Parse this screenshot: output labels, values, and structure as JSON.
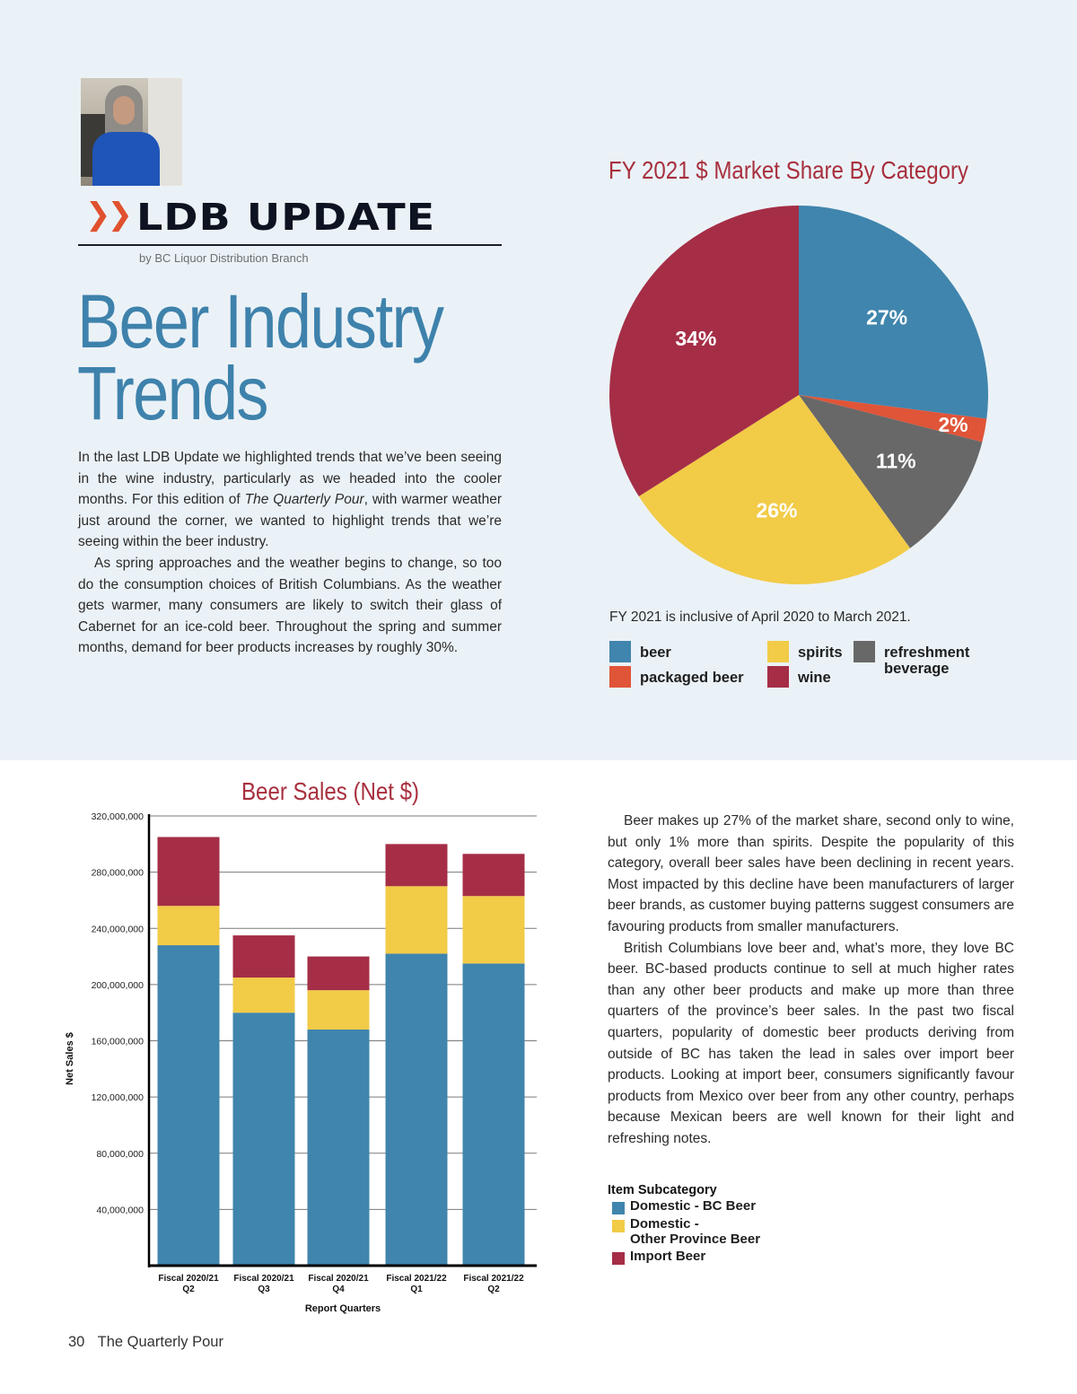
{
  "header": {
    "section_icon": "double-chevron-right",
    "section_title": "LDB UPDATE",
    "byline": "by BC Liquor Distribution Branch",
    "headline_line1": "Beer Industry",
    "headline_line2": "Trends"
  },
  "intro": {
    "p1_before": "In the last LDB Update we highlighted trends that we’ve been seeing in the wine industry, particularly as we headed into the cooler months. For this edition of ",
    "p1_italic": "The Quarterly Pour",
    "p1_after": ", with warmer weather just around the corner, we wanted to highlight trends that we’re seeing within the beer industry.",
    "p2": "As spring approaches and the weather begins to change, so too do the consumption choices of British Columbians. As the weather gets warmer, many consumers are likely to switch their glass of Cabernet for an ice-cold beer. Throughout the spring and summer months, demand for beer products increases by roughly 30%."
  },
  "body_right": {
    "p1": "Beer makes up 27% of the market share, second only to wine, but only 1% more than spirits. Despite the popularity of this category, overall beer sales have been declining in recent years. Most impacted by this decline have been manufacturers of larger beer brands, as customer buying patterns suggest consumers are favouring products from smaller manufacturers.",
    "p2": "British Columbians love beer and, what’s more, they love BC beer. BC-based products continue to sell at much higher rates than any other beer products and make up more than three quarters of the province’s beer sales. In the past two fiscal quarters, popularity of domestic beer products deriving from outside of BC has taken the lead in sales over import beer products. Looking at import beer, consumers significantly favour products from Mexico over beer from any other country, perhaps because Mexican beers are well known for their light and refreshing notes."
  },
  "pie_note": "FY 2021 is inclusive of April 2020 to March 2021.",
  "footer": {
    "page_number": "30",
    "publication": "The Quarterly Pour"
  },
  "colors": {
    "background_band": "#ebf2f7",
    "accent_orange": "#e0512e",
    "headline_blue": "#3e82ac",
    "chart_title_red": "#a8303e",
    "beer": "#4085ad",
    "packaged_beer": "#e05438",
    "spirits": "#f2cb47",
    "wine": "#a52e46",
    "refreshment_beverage": "#686868"
  },
  "chart_data": [
    {
      "type": "pie",
      "title": "FY 2021 $ Market Share By Category",
      "slices": [
        {
          "label": "beer",
          "value": 27,
          "display": "27%",
          "color": "#4085ad"
        },
        {
          "label": "packaged beer",
          "value": 2,
          "display": "2%",
          "color": "#e05438"
        },
        {
          "label": "refreshment beverage",
          "value": 11,
          "display": "11%",
          "color": "#686868"
        },
        {
          "label": "spirits",
          "value": 26,
          "display": "26%",
          "color": "#f2cb47"
        },
        {
          "label": "wine",
          "value": 34,
          "display": "34%",
          "color": "#a52e46"
        }
      ],
      "legend": [
        {
          "label": "beer",
          "color": "#4085ad"
        },
        {
          "label": "packaged beer",
          "color": "#e05438"
        },
        {
          "label": "spirits",
          "color": "#f2cb47"
        },
        {
          "label": "wine",
          "color": "#a52e46"
        },
        {
          "label": "refreshment beverage",
          "color": "#686868"
        }
      ],
      "legend_placement": "bottom"
    },
    {
      "type": "bar",
      "stacked": true,
      "title": "Beer Sales (Net $)",
      "xlabel": "Report Quarters",
      "ylabel": "Net Sales $",
      "ylim": [
        0,
        320000000
      ],
      "yticks": [
        40000000,
        80000000,
        120000000,
        160000000,
        200000000,
        240000000,
        280000000,
        320000000
      ],
      "ytick_labels": [
        "40,000,000",
        "80,000,000",
        "120,000,000",
        "160,000,000",
        "200,000,000",
        "240,000,000",
        "280,000,000",
        "320,000,000"
      ],
      "grid": true,
      "categories": [
        [
          "Fiscal 2020/21",
          "Q2"
        ],
        [
          "Fiscal 2020/21",
          "Q3"
        ],
        [
          "Fiscal 2020/21",
          "Q4"
        ],
        [
          "Fiscal 2021/22",
          "Q1"
        ],
        [
          "Fiscal 2021/22",
          "Q2"
        ]
      ],
      "series": [
        {
          "name": "Domestic - BC Beer",
          "color": "#4085ad",
          "values": [
            228000000,
            180000000,
            168000000,
            222000000,
            215000000
          ]
        },
        {
          "name": "Domestic - Other Province Beer",
          "color": "#f2cb47",
          "values": [
            28000000,
            25000000,
            28000000,
            48000000,
            48000000
          ]
        },
        {
          "name": "Import Beer",
          "color": "#a52e46",
          "values": [
            49000000,
            30000000,
            24000000,
            30000000,
            30000000
          ]
        }
      ],
      "legend_title": "Item Subcategory",
      "legend": [
        {
          "label": "Domestic - BC Beer",
          "color": "#4085ad"
        },
        {
          "label": "Domestic -\nOther Province Beer",
          "color": "#f2cb47"
        },
        {
          "label": "Import Beer",
          "color": "#a52e46"
        }
      ],
      "legend_placement": "right"
    }
  ]
}
